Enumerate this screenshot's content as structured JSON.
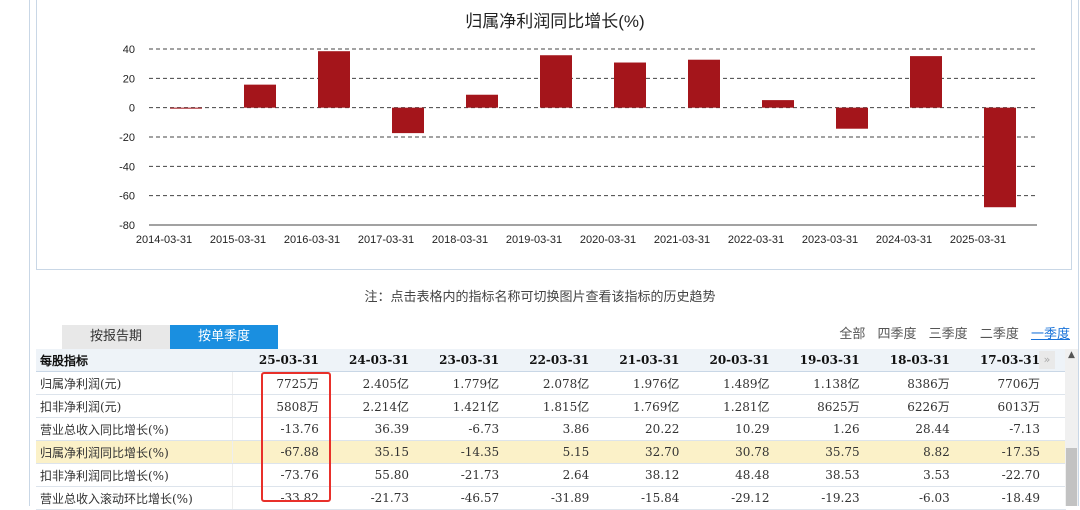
{
  "chart": {
    "title": "归属净利润同比增长(%)"
  },
  "chart_data": {
    "type": "bar",
    "title": "归属净利润同比增长(%)",
    "categories": [
      "2014-03-31",
      "2015-03-31",
      "2016-03-31",
      "2017-03-31",
      "2018-03-31",
      "2019-03-31",
      "2020-03-31",
      "2021-03-31",
      "2022-03-31",
      "2023-03-31",
      "2024-03-31",
      "2025-03-31"
    ],
    "values": [
      -0.5,
      15.7,
      38.5,
      -17.35,
      8.82,
      35.75,
      30.78,
      32.7,
      5.15,
      -14.35,
      35.15,
      -67.88
    ],
    "ylim": [
      -80,
      40
    ],
    "yticks": [
      40,
      20,
      0,
      -20,
      -40,
      -60,
      -80
    ],
    "grid": true,
    "bar_color": "#a4151b"
  },
  "note": "注：点击表格内的指标名称可切换图片查看该指标的历史趋势",
  "tabs": {
    "report": "按报告期",
    "quarter": "按单季度"
  },
  "filters": [
    "全部",
    "四季度",
    "三季度",
    "二季度",
    "一季度"
  ],
  "table": {
    "header": "每股指标",
    "columns": [
      "25-03-31",
      "24-03-31",
      "23-03-31",
      "22-03-31",
      "21-03-31",
      "20-03-31",
      "19-03-31",
      "18-03-31",
      "17-03-31"
    ],
    "rows": [
      {
        "name": "归属净利润(元)",
        "values": [
          "7725万",
          "2.405亿",
          "1.779亿",
          "2.078亿",
          "1.976亿",
          "1.489亿",
          "1.138亿",
          "8386万",
          "7706万"
        ]
      },
      {
        "name": "扣非净利润(元)",
        "values": [
          "5808万",
          "2.214亿",
          "1.421亿",
          "1.815亿",
          "1.769亿",
          "1.281亿",
          "8625万",
          "6226万",
          "6013万"
        ]
      },
      {
        "name": "营业总收入同比增长(%)",
        "values": [
          "-13.76",
          "36.39",
          "-6.73",
          "3.86",
          "20.22",
          "10.29",
          "1.26",
          "28.44",
          "-7.13"
        ]
      },
      {
        "name": "归属净利润同比增长(%)",
        "values": [
          "-67.88",
          "35.15",
          "-14.35",
          "5.15",
          "32.70",
          "30.78",
          "35.75",
          "8.82",
          "-17.35"
        ]
      },
      {
        "name": "扣非净利润同比增长(%)",
        "values": [
          "-73.76",
          "55.80",
          "-21.73",
          "2.64",
          "38.12",
          "48.48",
          "38.53",
          "3.53",
          "-22.70"
        ]
      },
      {
        "name": "营业总收入滚动环比增长(%)",
        "values": [
          "-33.82",
          "-21.73",
          "-46.57",
          "-31.89",
          "-15.84",
          "-29.12",
          "-19.23",
          "-6.03",
          "-18.49"
        ]
      }
    ],
    "highlight_row": 3
  },
  "colors": {
    "accent": "#1a8fe0",
    "bar": "#a4151b",
    "highlight_row": "#fbf1c8",
    "annotation_box": "#e8302a"
  }
}
